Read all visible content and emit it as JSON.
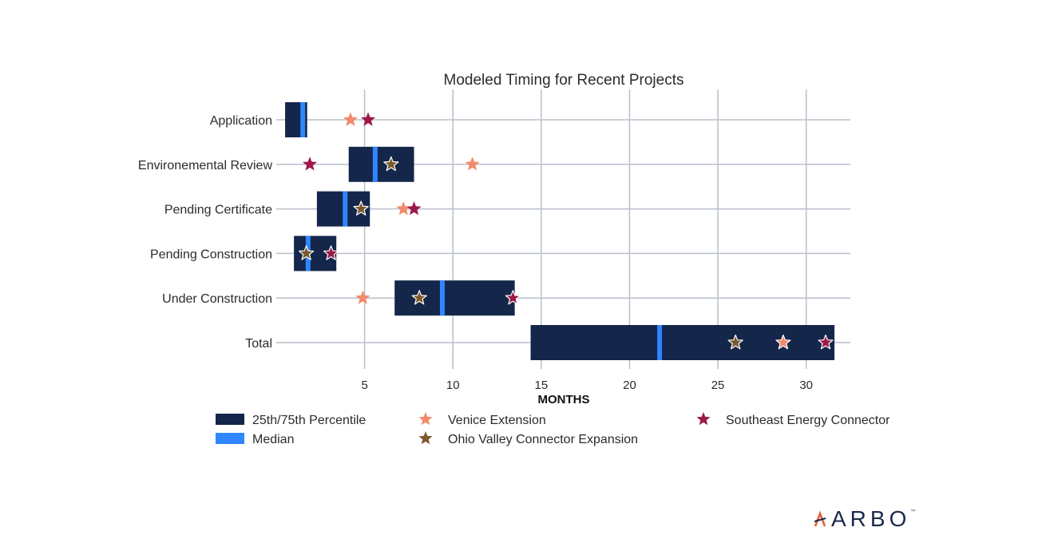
{
  "chart_data": {
    "type": "box-timeline",
    "title": "Modeled Timing for Recent Projects",
    "xlabel": "MONTHS",
    "xlim": [
      0,
      32.5
    ],
    "xticks": [
      5,
      10,
      15,
      20,
      25,
      30
    ],
    "grid": true,
    "categories": [
      "Application",
      "Environemental Review",
      "Pending Certificate",
      "Pending Construction",
      "Under Construction",
      "Total"
    ],
    "ranges": [
      {
        "category": "Application",
        "p25": 0.5,
        "p75": 1.75,
        "median": 1.5
      },
      {
        "category": "Environemental Review",
        "p25": 4.1,
        "p75": 7.8,
        "median": 5.6
      },
      {
        "category": "Pending Certificate",
        "p25": 2.3,
        "p75": 5.3,
        "median": 3.9
      },
      {
        "category": "Pending Construction",
        "p25": 1.0,
        "p75": 3.4,
        "median": 1.8
      },
      {
        "category": "Under Construction",
        "p25": 6.7,
        "p75": 13.5,
        "median": 9.4
      },
      {
        "category": "Total",
        "p25": 14.4,
        "p75": 31.6,
        "median": 21.7
      }
    ],
    "series": [
      {
        "name": "Venice Extension",
        "color": "#f28a6b",
        "values": [
          4.2,
          11.1,
          7.2,
          null,
          4.9,
          28.7
        ]
      },
      {
        "name": "Southeast Energy Connector",
        "color": "#9e1848",
        "values": [
          5.2,
          1.9,
          7.8,
          3.1,
          13.4,
          31.1
        ]
      },
      {
        "name": "Ohio Valley Connector Expansion",
        "color": "#7a5a2c",
        "values": [
          null,
          6.5,
          4.8,
          1.7,
          8.1,
          26.0
        ]
      }
    ],
    "legend": {
      "placement": "bottom",
      "items": [
        {
          "label": "25th/75th Percentile",
          "kind": "box",
          "color": "#14264a"
        },
        {
          "label": "Median",
          "kind": "line",
          "color": "#2f86ff"
        },
        {
          "label": "Venice Extension",
          "kind": "star",
          "color": "#f28a6b"
        },
        {
          "label": "Ohio Valley Connector Expansion",
          "kind": "star",
          "color": "#7a5a2c"
        },
        {
          "label": "Southeast Energy Connector",
          "kind": "star",
          "color": "#9e1848"
        }
      ]
    },
    "colors": {
      "box": "#14264a",
      "median": "#2f86ff",
      "grid": "#b9bfcc"
    }
  },
  "logo": {
    "text": "ARBO",
    "tm": "™"
  }
}
